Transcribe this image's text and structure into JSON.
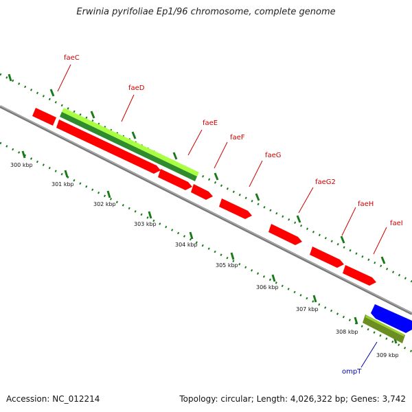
{
  "title": "Erwinia pyrifoliae Ep1/96 chromosome, complete genome",
  "footer": {
    "accession": "Accession: NC_012214",
    "topology": "Topology: circular; Length: 4,026,322 bp; Genes: 3,742"
  },
  "colors": {
    "backbone": "#8a8a8a",
    "ruler": "#1a7a1a",
    "gene_forward": "#ff0000",
    "gene_label": "#cc0000",
    "ompT": "#0000ff",
    "ompT_label": "#0000aa",
    "band_light": "#aaff44",
    "band_dark": "#2e8b2e",
    "band_olive": "#6b8e23"
  },
  "genes": [
    {
      "name": "faeC",
      "strand": "+"
    },
    {
      "name": "faeD",
      "strand": "+"
    },
    {
      "name": "faeE",
      "strand": "+"
    },
    {
      "name": "faeF",
      "strand": "+"
    },
    {
      "name": "faeG",
      "strand": "+"
    },
    {
      "name": "faeG2",
      "strand": "+"
    },
    {
      "name": "faeH",
      "strand": "+"
    },
    {
      "name": "faeI",
      "strand": "+"
    },
    {
      "name": "ompT",
      "strand": "-"
    }
  ],
  "ticks": [
    "300 kbp",
    "301 kbp",
    "302 kbp",
    "303 kbp",
    "304 kbp",
    "305 kbp",
    "306 kbp",
    "307 kbp",
    "308 kbp",
    "309 kbp"
  ]
}
